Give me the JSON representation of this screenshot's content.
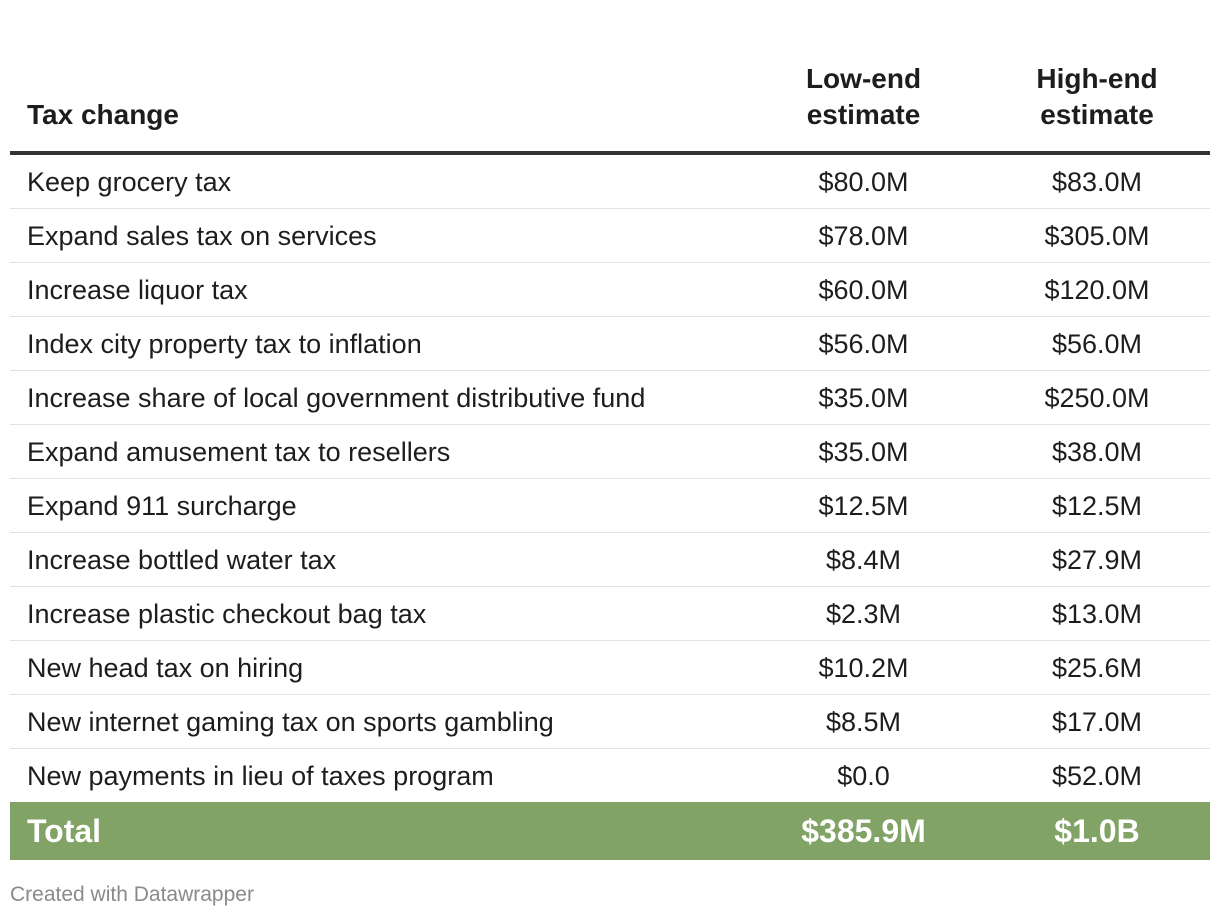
{
  "chart_data": {
    "type": "table",
    "columns": [
      "Tax change",
      "Low-end estimate",
      "High-end estimate"
    ],
    "header": {
      "name": "Tax change",
      "low_line1": "Low-end",
      "low_line2": "estimate",
      "high_line1": "High-end",
      "high_line2": "estimate"
    },
    "rows": [
      {
        "name": "Keep grocery tax",
        "low": "$80.0M",
        "high": "$83.0M"
      },
      {
        "name": "Expand sales tax on services",
        "low": "$78.0M",
        "high": "$305.0M"
      },
      {
        "name": "Increase liquor tax",
        "low": "$60.0M",
        "high": "$120.0M"
      },
      {
        "name": "Index city property tax to inflation",
        "low": "$56.0M",
        "high": "$56.0M"
      },
      {
        "name": "Increase share of local government distributive fund",
        "low": "$35.0M",
        "high": "$250.0M"
      },
      {
        "name": "Expand amusement tax to resellers",
        "low": "$35.0M",
        "high": "$38.0M"
      },
      {
        "name": "Expand 911 surcharge",
        "low": "$12.5M",
        "high": "$12.5M"
      },
      {
        "name": "Increase bottled water tax",
        "low": "$8.4M",
        "high": "$27.9M"
      },
      {
        "name": "Increase plastic checkout bag tax",
        "low": "$2.3M",
        "high": "$13.0M"
      },
      {
        "name": "New head tax on hiring",
        "low": "$10.2M",
        "high": "$25.6M"
      },
      {
        "name": "New internet gaming tax on sports gambling",
        "low": "$8.5M",
        "high": "$17.0M"
      },
      {
        "name": "New payments in lieu of taxes program",
        "low": "$0.0",
        "high": "$52.0M"
      }
    ],
    "total": {
      "name": "Total",
      "low": "$385.9M",
      "high": "$1.0B"
    }
  },
  "footer": {
    "credit": "Created with Datawrapper"
  },
  "colors": {
    "total_row_background": "#82a366",
    "header_rule": "#333333",
    "row_divider": "#e2e2e2",
    "credit_text": "#8a8a8a"
  }
}
